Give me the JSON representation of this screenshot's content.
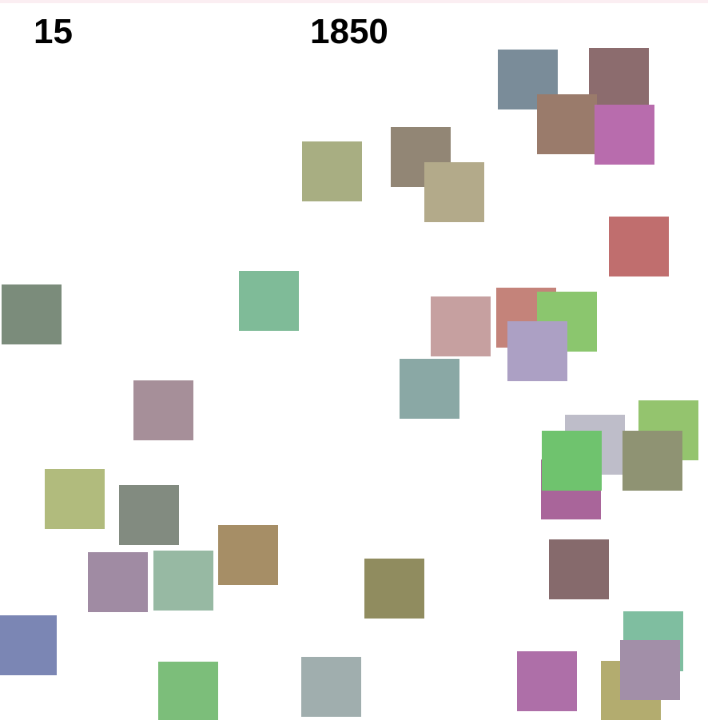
{
  "hud": {
    "left_value": "15",
    "center_value": "1850"
  },
  "tiles": [
    {
      "color": "#7a8c99"
    },
    {
      "color": "#8c6c6e"
    },
    {
      "color": "#9a7b6b"
    },
    {
      "color": "#b86cad"
    },
    {
      "color": "#a8ae82"
    },
    {
      "color": "#928675"
    },
    {
      "color": "#b3aa8a"
    },
    {
      "color": "#c06e6e"
    },
    {
      "color": "#7b8c7b"
    },
    {
      "color": "#7fbb98"
    },
    {
      "color": "#c6a0a0"
    },
    {
      "color": "#c4837a"
    },
    {
      "color": "#8bc66e"
    },
    {
      "color": "#aca0c4"
    },
    {
      "color": "#8aa8a5"
    },
    {
      "color": "#a68f99"
    },
    {
      "color": "#94c46e"
    },
    {
      "color": "#bebdc9"
    },
    {
      "color": "#a9659a"
    },
    {
      "color": "#6fc36e"
    },
    {
      "color": "#8f9373"
    },
    {
      "color": "#b1bb7d"
    },
    {
      "color": "#828b80"
    },
    {
      "color": "#a68e66"
    },
    {
      "color": "#a08ba3"
    },
    {
      "color": "#97b9a3"
    },
    {
      "color": "#908c5f"
    },
    {
      "color": "#866a6c"
    },
    {
      "color": "#7b86b4"
    },
    {
      "color": "#7cbe7a"
    },
    {
      "color": "#a0aeae"
    },
    {
      "color": "#ae6fa8"
    },
    {
      "color": "#b3ac6f"
    },
    {
      "color": "#7fbea0"
    },
    {
      "color": "#a28fa8"
    }
  ]
}
